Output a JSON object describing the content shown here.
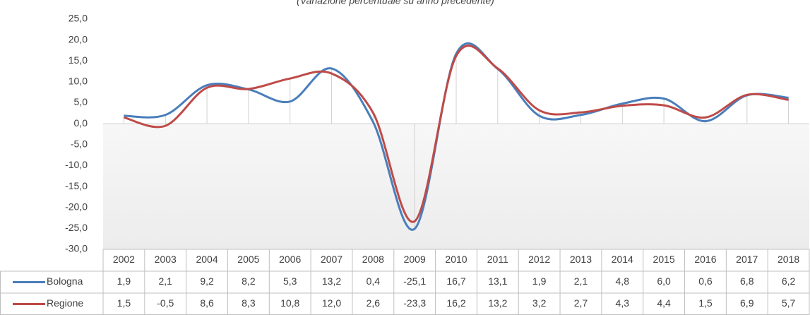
{
  "chart_data": {
    "type": "line",
    "subtitle": "(Variazione percentuale su anno precedente)",
    "categories": [
      "2002",
      "2003",
      "2004",
      "2005",
      "2006",
      "2007",
      "2008",
      "2009",
      "2010",
      "2011",
      "2012",
      "2013",
      "2014",
      "2015",
      "2016",
      "2017",
      "2018"
    ],
    "series": [
      {
        "name": "Bologna",
        "color": "#4a7ebb",
        "values": [
          1.9,
          2.1,
          9.2,
          8.2,
          5.3,
          13.2,
          0.4,
          -25.1,
          16.7,
          13.1,
          1.9,
          2.1,
          4.8,
          6.0,
          0.6,
          6.8,
          6.2
        ],
        "value_labels": [
          "1,9",
          "2,1",
          "9,2",
          "8,2",
          "5,3",
          "13,2",
          "0,4",
          "-25,1",
          "16,7",
          "13,1",
          "1,9",
          "2,1",
          "4,8",
          "6,0",
          "0,6",
          "6,8",
          "6,2"
        ]
      },
      {
        "name": "Regione",
        "color": "#be4b48",
        "values": [
          1.5,
          -0.5,
          8.6,
          8.3,
          10.8,
          12.0,
          2.6,
          -23.3,
          16.2,
          13.2,
          3.2,
          2.7,
          4.3,
          4.4,
          1.5,
          6.9,
          5.7
        ],
        "value_labels": [
          "1,5",
          "-0,5",
          "8,6",
          "8,3",
          "10,8",
          "12,0",
          "2,6",
          "-23,3",
          "16,2",
          "13,2",
          "3,2",
          "2,7",
          "4,3",
          "4,4",
          "1,5",
          "6,9",
          "5,7"
        ]
      }
    ],
    "ylim": [
      -30,
      25
    ],
    "yticks": [
      {
        "value": -30,
        "label": "-30,0"
      },
      {
        "value": -25,
        "label": "-25,0"
      },
      {
        "value": -20,
        "label": "-20,0"
      },
      {
        "value": -15,
        "label": "-15,0"
      },
      {
        "value": -10,
        "label": "-10,0"
      },
      {
        "value": -5,
        "label": "-5,0"
      },
      {
        "value": 0,
        "label": "0,0"
      },
      {
        "value": 5,
        "label": "5,0"
      },
      {
        "value": 10,
        "label": "10,0"
      },
      {
        "value": 15,
        "label": "15,0"
      },
      {
        "value": 20,
        "label": "20,0"
      },
      {
        "value": 25,
        "label": "25,0"
      }
    ],
    "grid": false
  }
}
